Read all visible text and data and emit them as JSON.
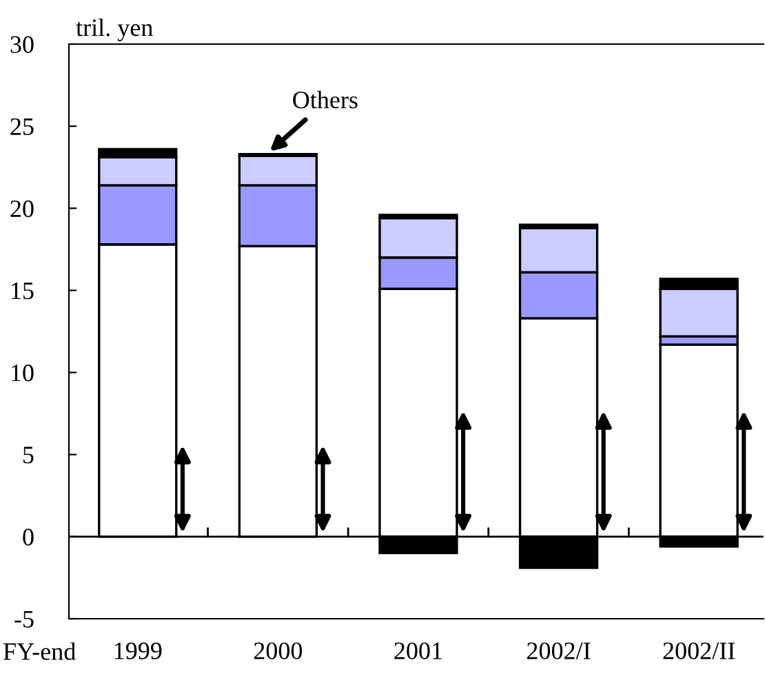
{
  "chart_data": {
    "type": "bar",
    "stacked": true,
    "ylabel": "tril. yen",
    "xlabel": "FY-end",
    "categories": [
      "1999",
      "2000",
      "2001",
      "2002/I",
      "2002/II"
    ],
    "series": [
      {
        "color": "#ffffff",
        "values": [
          17.8,
          17.7,
          15.1,
          13.3,
          11.7
        ]
      },
      {
        "color": "#9999ff",
        "values": [
          3.6,
          3.7,
          1.9,
          2.8,
          0.5
        ]
      },
      {
        "color": "#ccccff",
        "values": [
          1.7,
          1.8,
          2.4,
          2.7,
          2.9
        ]
      },
      {
        "color": "#000000",
        "values": [
          0.5,
          0.1,
          0.2,
          0.2,
          0.6
        ]
      },
      {
        "color": "#000000",
        "values": [
          null,
          null,
          -1.0,
          -1.9,
          -0.6
        ]
      }
    ],
    "ylim": [
      -5,
      30
    ],
    "yticks": [
      {
        "value": -5,
        "label": "-5"
      },
      0,
      5,
      10,
      15,
      20,
      25,
      30
    ],
    "annotations": [
      {
        "text": "Others",
        "x": "2000",
        "y": 23.3
      }
    ],
    "ref_lines": [
      {
        "axis": "y",
        "value": 0,
        "color": "#000000"
      }
    ]
  }
}
